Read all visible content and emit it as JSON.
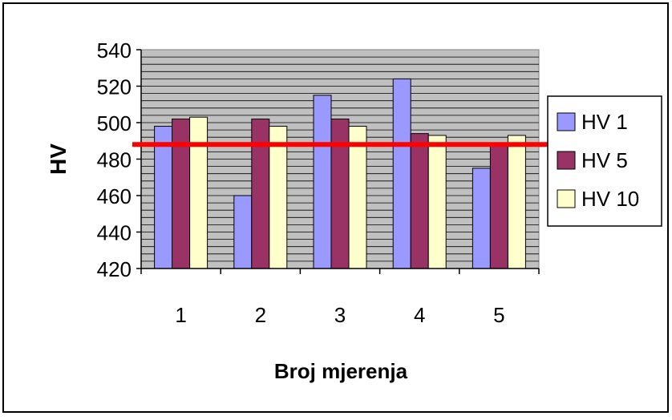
{
  "chart_data": {
    "type": "bar",
    "title": "",
    "xlabel": "Broj mjerenja",
    "ylabel": "HV",
    "categories": [
      "1",
      "2",
      "3",
      "4",
      "5"
    ],
    "series": [
      {
        "name": "HV 1",
        "values": [
          498,
          460,
          515,
          524,
          475
        ],
        "color": "#9999ff"
      },
      {
        "name": "HV 5",
        "values": [
          502,
          502,
          502,
          494,
          488
        ],
        "color": "#993366"
      },
      {
        "name": "HV 10",
        "values": [
          503,
          498,
          498,
          493,
          493
        ],
        "color": "#ffffcc"
      }
    ],
    "ylim": [
      420,
      540
    ],
    "yticks": [
      "420",
      "440",
      "460",
      "480",
      "500",
      "520",
      "540"
    ],
    "reference_line": {
      "value": 488,
      "color": "#ff0000"
    },
    "grid": true,
    "plot_background": "#c0c0c0",
    "legend": "right"
  }
}
